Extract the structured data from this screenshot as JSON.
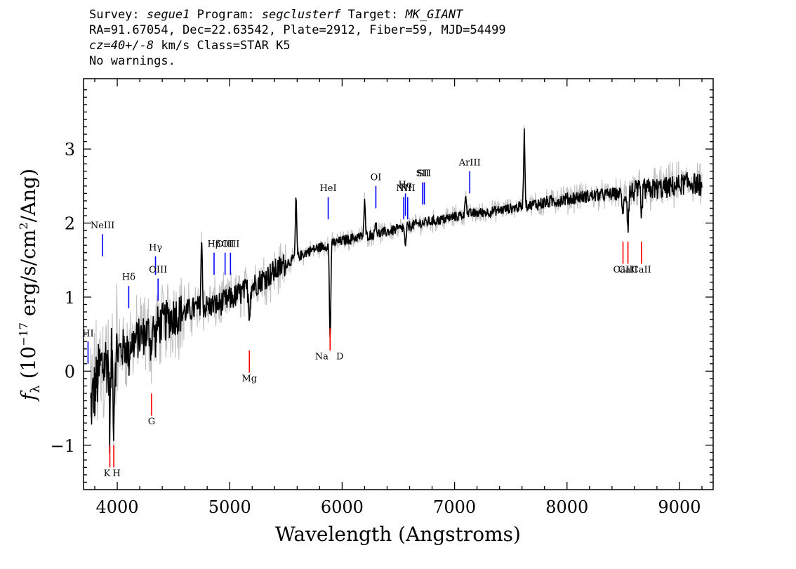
{
  "header": {
    "survey_label": "Survey:",
    "survey_value": "segue1",
    "program_label": "Program:",
    "program_value": "segclusterf",
    "target_label": "Target:",
    "target_value": "MK_GIANT",
    "line2": "RA=91.67054, Dec=22.63542, Plate=2912, Fiber=59, MJD=54499",
    "cz_value": "cz=40+/-8",
    "cz_rest": " km/s Class=STAR K5",
    "warnings": "No warnings."
  },
  "chart_data": {
    "type": "line",
    "title": "",
    "xlabel": "Wavelength (Angstroms)",
    "ylabel_prefix": "f",
    "ylabel_sub": "λ",
    "ylabel_text1": " (10",
    "ylabel_exp1": "−17",
    "ylabel_text2": " erg/s/cm",
    "ylabel_exp2": "2",
    "ylabel_text3": "/Ang)",
    "xlim": [
      3700,
      9300
    ],
    "ylim": [
      -1.6,
      3.95
    ],
    "xticks": [
      4000,
      5000,
      6000,
      7000,
      8000,
      9000
    ],
    "xtick_labels": [
      "4000",
      "5000",
      "6000",
      "7000",
      "8000",
      "9000"
    ],
    "yticks": [
      -1,
      0,
      1,
      2,
      3
    ],
    "ytick_labels": [
      "−1",
      "0",
      "1",
      "2",
      "3"
    ],
    "grid": false,
    "colors": {
      "flux": "#000000",
      "error": "#c0c0c0",
      "emission": "#0000ff",
      "absorption": "#ff0000"
    },
    "continuum_knots": [
      [
        3760,
        -0.5
      ],
      [
        3850,
        0.05
      ],
      [
        3950,
        0.2
      ],
      [
        4100,
        0.35
      ],
      [
        4300,
        0.55
      ],
      [
        4500,
        0.75
      ],
      [
        4700,
        0.85
      ],
      [
        4900,
        0.9
      ],
      [
        5100,
        1.05
      ],
      [
        5300,
        1.25
      ],
      [
        5500,
        1.45
      ],
      [
        5700,
        1.62
      ],
      [
        5900,
        1.72
      ],
      [
        6100,
        1.8
      ],
      [
        6300,
        1.85
      ],
      [
        6500,
        1.92
      ],
      [
        6700,
        2.0
      ],
      [
        6900,
        2.05
      ],
      [
        7100,
        2.12
      ],
      [
        7300,
        2.15
      ],
      [
        7500,
        2.2
      ],
      [
        7700,
        2.25
      ],
      [
        7900,
        2.3
      ],
      [
        8100,
        2.35
      ],
      [
        8300,
        2.38
      ],
      [
        8500,
        2.4
      ],
      [
        8700,
        2.45
      ],
      [
        8900,
        2.48
      ],
      [
        9100,
        2.55
      ],
      [
        9200,
        2.5
      ]
    ],
    "spectral_features": [
      [
        3934,
        -0.9
      ],
      [
        3969,
        -0.8
      ],
      [
        4102,
        -0.2
      ],
      [
        4300,
        -0.2
      ],
      [
        4340,
        -0.15
      ],
      [
        4750,
        0.9
      ],
      [
        5175,
        -0.35
      ],
      [
        5590,
        0.8
      ],
      [
        5893,
        -1.3
      ],
      [
        6200,
        0.45
      ],
      [
        6300,
        0.2
      ],
      [
        6563,
        -0.3
      ],
      [
        7100,
        0.3
      ],
      [
        7620,
        1.0
      ],
      [
        8498,
        -0.35
      ],
      [
        8542,
        -0.45
      ],
      [
        8662,
        -0.4
      ]
    ],
    "emission_lines": [
      {
        "label": "HI",
        "x": 3740,
        "y1": 0.1,
        "y2": 0.4,
        "label_y": 0.47
      },
      {
        "label": "NeIII",
        "x": 3869,
        "y1": 1.55,
        "y2": 1.85,
        "label_y": 1.93
      },
      {
        "label": "Hδ",
        "x": 4102,
        "y1": 0.85,
        "y2": 1.15,
        "label_y": 1.23
      },
      {
        "label": "Hγ",
        "x": 4340,
        "y1": 1.3,
        "y2": 1.55,
        "label_y": 1.63
      },
      {
        "label": "OIII",
        "x": 4363,
        "y1": 0.95,
        "y2": 1.25,
        "label_y": 1.33
      },
      {
        "label": "Hβ",
        "x": 4861,
        "y1": 1.3,
        "y2": 1.6,
        "label_y": 1.68
      },
      {
        "label": "OIII",
        "x": 4959,
        "y1": 1.3,
        "y2": 1.6,
        "label_y": 1.68
      },
      {
        "label": "OIII",
        "x": 5007,
        "y1": 1.3,
        "y2": 1.6,
        "label_y": 1.68
      },
      {
        "label": "HeI",
        "x": 5876,
        "y1": 2.05,
        "y2": 2.35,
        "label_y": 2.43
      },
      {
        "label": "OI",
        "x": 6300,
        "y1": 2.2,
        "y2": 2.5,
        "label_y": 2.58
      },
      {
        "label": "NII",
        "x": 6548,
        "y1": 2.05,
        "y2": 2.35,
        "label_y": 2.43
      },
      {
        "label": "Hα",
        "x": 6563,
        "y1": 2.1,
        "y2": 2.4,
        "label_y": 2.48
      },
      {
        "label": "NII",
        "x": 6583,
        "y1": 2.05,
        "y2": 2.35,
        "label_y": 2.43
      },
      {
        "label": "SII",
        "x": 6716,
        "y1": 2.25,
        "y2": 2.55,
        "label_y": 2.63
      },
      {
        "label": "SII",
        "x": 6731,
        "y1": 2.25,
        "y2": 2.55,
        "label_y": 2.63
      },
      {
        "label": "ArIII",
        "x": 7135,
        "y1": 2.4,
        "y2": 2.7,
        "label_y": 2.78
      }
    ],
    "absorption_lines": [
      {
        "label": "K",
        "x": 3934,
        "y1": -1.3,
        "y2": -1.0,
        "label_y": -1.42
      },
      {
        "label": "H",
        "x": 3969,
        "y1": -1.3,
        "y2": -1.0,
        "label_y": -1.42
      },
      {
        "label": "G",
        "x": 4305,
        "y1": -0.6,
        "y2": -0.3,
        "label_y": -0.72
      },
      {
        "label": "Mg",
        "x": 5175,
        "y1": -0.02,
        "y2": 0.28,
        "label_y": -0.14
      },
      {
        "label": "Na",
        "x": 5893,
        "y1": 0.28,
        "y2": 0.58,
        "label_y": 0.16
      },
      {
        "label": "D",
        "x": 5893,
        "y1": 0.28,
        "y2": 0.58,
        "label_y": 0.16
      },
      {
        "label": "CaII",
        "x": 8498,
        "y1": 1.45,
        "y2": 1.75,
        "label_y": 1.33
      },
      {
        "label": "CaII",
        "x": 8542,
        "y1": 1.45,
        "y2": 1.75,
        "label_y": 1.33
      },
      {
        "label": "CaII",
        "x": 8662,
        "y1": 1.45,
        "y2": 1.75,
        "label_y": 1.33
      }
    ]
  }
}
